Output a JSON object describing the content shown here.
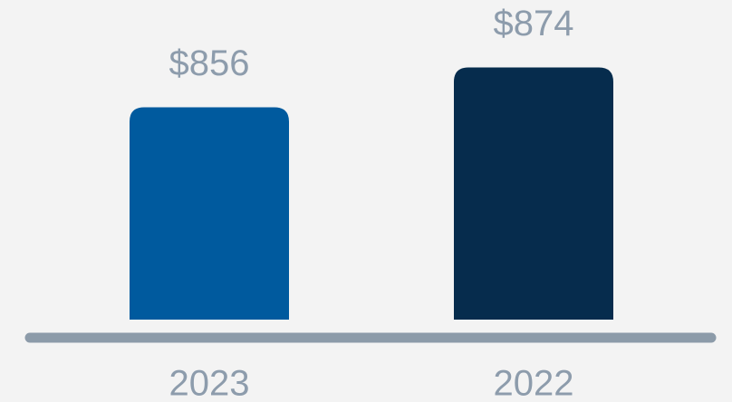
{
  "chart_data": {
    "type": "bar",
    "categories": [
      "2023",
      "2022"
    ],
    "values": [
      856,
      874
    ],
    "value_labels": [
      "$856",
      "$874"
    ],
    "colors": [
      "#005a9e",
      "#062c4d"
    ],
    "ylim": [
      760,
      900
    ]
  }
}
